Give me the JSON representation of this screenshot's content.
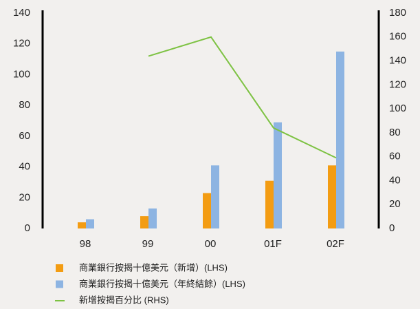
{
  "chart_data": {
    "type": "bar_line",
    "categories": [
      "98",
      "99",
      "00",
      "01F",
      "02F"
    ],
    "series": [
      {
        "name": "商業銀行按揭十億美元（新增）(LHS)",
        "color": "#f39c12",
        "type": "bar",
        "values": [
          4,
          8,
          23,
          31,
          41
        ]
      },
      {
        "name": "商業銀行按揭十億美元（年終結餘）(LHS)",
        "color": "#8db4e2",
        "type": "bar",
        "values": [
          6,
          13,
          41,
          69,
          115
        ]
      },
      {
        "name": "新增按揭百分比 (RHS)",
        "color": "#7dc242",
        "type": "line",
        "axis": "y2",
        "values": [
          null,
          144,
          160,
          84,
          59
        ]
      }
    ],
    "ylim": [
      0,
      140
    ],
    "yticks": [
      0,
      20,
      40,
      60,
      80,
      100,
      120,
      140
    ],
    "y2lim": [
      0,
      180
    ],
    "y2ticks": [
      0,
      20,
      40,
      60,
      80,
      100,
      120,
      140,
      160,
      180
    ],
    "grid": false
  }
}
